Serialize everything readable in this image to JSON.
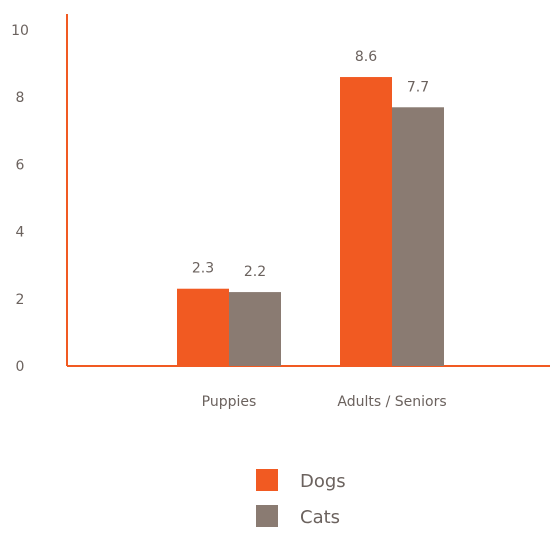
{
  "chart_data": {
    "type": "bar",
    "title": "",
    "xlabel": "",
    "ylabel": "",
    "categories": [
      "Puppies",
      "Adults / Seniors"
    ],
    "series": [
      {
        "name": "Dogs",
        "values": [
          2.3,
          8.6
        ],
        "color": "#f15a22"
      },
      {
        "name": "Cats",
        "values": [
          2.2,
          7.7
        ],
        "color": "#8a7b72"
      }
    ],
    "ylim": [
      0,
      10
    ],
    "yticks": [
      "0",
      "2",
      "4",
      "6",
      "8",
      "10"
    ],
    "data_labels": [
      [
        "2.3",
        "8.6"
      ],
      [
        "2.2",
        "7.7"
      ]
    ],
    "grid": false,
    "legend_position": "bottom-center",
    "axis_color": "#f15a22"
  }
}
